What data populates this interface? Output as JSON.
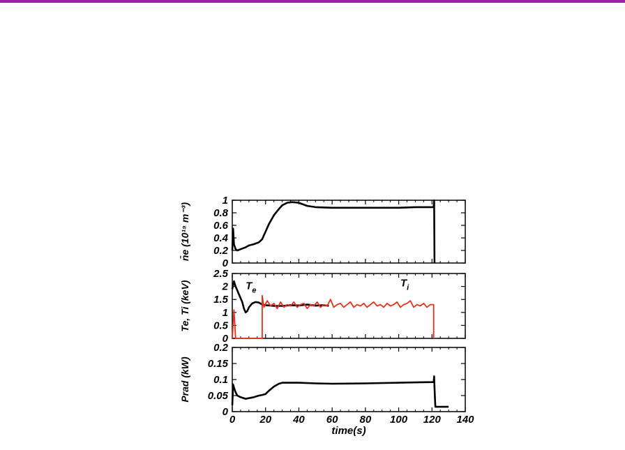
{
  "colors": {
    "top_rule": "#a020a0",
    "electron": "#000000",
    "ion": "#e8301c"
  },
  "chart_data": [
    {
      "type": "line",
      "ylabel": "n̄e (10¹⁹ m⁻³)",
      "xlim": [
        0,
        140
      ],
      "ylim": [
        0,
        1
      ],
      "yticks": [
        "0",
        "0.2",
        "0.4",
        "0.6",
        "0.8",
        "1"
      ],
      "xticks": [
        "0",
        "20",
        "40",
        "60",
        "80",
        "100",
        "120",
        "140"
      ],
      "series": [
        {
          "color": "#000000",
          "x": [
            0,
            0.5,
            1,
            2,
            3,
            5,
            8,
            10,
            13,
            16,
            18,
            20,
            22,
            25,
            28,
            30,
            33,
            36,
            40,
            45,
            50,
            60,
            70,
            80,
            90,
            100,
            110,
            115,
            120,
            121,
            121.3,
            121.5
          ],
          "y": [
            0.2,
            0.55,
            0.3,
            0.22,
            0.2,
            0.22,
            0.25,
            0.28,
            0.3,
            0.33,
            0.38,
            0.5,
            0.62,
            0.76,
            0.86,
            0.92,
            0.96,
            0.97,
            0.96,
            0.91,
            0.89,
            0.88,
            0.88,
            0.88,
            0.88,
            0.88,
            0.89,
            0.89,
            0.89,
            0.89,
            1.0,
            0.0
          ]
        }
      ]
    },
    {
      "type": "line",
      "ylabel": "Te, Ti (keV)",
      "xlim": [
        0,
        140
      ],
      "ylim": [
        0,
        2.5
      ],
      "yticks": [
        "0",
        "0.5",
        "1",
        "1.5",
        "2",
        "2.5"
      ],
      "annotations": [
        {
          "text": "T",
          "sub": "e",
          "x": 8,
          "y": 1.9
        },
        {
          "text": "T",
          "sub": "i",
          "x": 101,
          "y": 2.0
        }
      ],
      "series": [
        {
          "name": "Te",
          "color": "#000000",
          "x": [
            0,
            1,
            2,
            4,
            6,
            7,
            8,
            9,
            10,
            12,
            14,
            16,
            18,
            20,
            25,
            30,
            35,
            40,
            45,
            50,
            55,
            58
          ],
          "y": [
            1.9,
            2.2,
            2.0,
            1.7,
            1.4,
            1.15,
            1.0,
            1.05,
            1.2,
            1.35,
            1.4,
            1.38,
            1.3,
            1.28,
            1.25,
            1.25,
            1.28,
            1.27,
            1.3,
            1.26,
            1.28,
            1.25
          ]
        },
        {
          "name": "Ti",
          "color": "#e8301c",
          "x": [
            0,
            1,
            2,
            18,
            18,
            19,
            21,
            23,
            25,
            27,
            29,
            31,
            33,
            35,
            37,
            39,
            41,
            43,
            45,
            47,
            49,
            51,
            53,
            55,
            57,
            59,
            61,
            63,
            65,
            67,
            69,
            71,
            73,
            75,
            77,
            79,
            81,
            83,
            85,
            87,
            89,
            91,
            93,
            95,
            97,
            99,
            101,
            103,
            105,
            107,
            109,
            111,
            113,
            115,
            117,
            119,
            121,
            121
          ],
          "y": [
            0,
            1.1,
            0,
            0,
            1.65,
            1.2,
            1.45,
            1.25,
            1.35,
            1.15,
            1.4,
            1.2,
            1.3,
            1.25,
            1.4,
            1.2,
            1.3,
            1.35,
            1.15,
            1.3,
            1.25,
            1.4,
            1.2,
            1.3,
            1.25,
            1.5,
            1.2,
            1.3,
            1.35,
            1.2,
            1.3,
            1.4,
            1.2,
            1.3,
            1.25,
            1.35,
            1.2,
            1.3,
            1.4,
            1.25,
            1.3,
            1.2,
            1.35,
            1.25,
            1.3,
            1.4,
            1.2,
            1.3,
            1.35,
            1.45,
            1.2,
            1.3,
            1.25,
            1.35,
            1.2,
            1.3,
            1.3,
            0
          ]
        }
      ]
    },
    {
      "type": "line",
      "ylabel": "Prad (kW)",
      "xlabel": "time(s)",
      "xlim": [
        0,
        140
      ],
      "ylim": [
        0,
        0.2
      ],
      "yticks": [
        "0",
        "0.05",
        "0.1",
        "0.15",
        "0.2"
      ],
      "xticks": [
        "0",
        "20",
        "40",
        "60",
        "80",
        "100",
        "120",
        "140"
      ],
      "series": [
        {
          "color": "#000000",
          "x": [
            0,
            0.5,
            1,
            2,
            3,
            5,
            8,
            10,
            13,
            16,
            18,
            20,
            22,
            25,
            28,
            30,
            35,
            40,
            50,
            60,
            80,
            100,
            110,
            120,
            121,
            121.3,
            121.5,
            122,
            130
          ],
          "y": [
            0.02,
            0.085,
            0.075,
            0.06,
            0.05,
            0.045,
            0.04,
            0.042,
            0.045,
            0.05,
            0.052,
            0.055,
            0.065,
            0.078,
            0.087,
            0.09,
            0.09,
            0.09,
            0.088,
            0.087,
            0.088,
            0.09,
            0.091,
            0.092,
            0.092,
            0.11,
            0.075,
            0.015,
            0.015
          ]
        }
      ]
    }
  ]
}
